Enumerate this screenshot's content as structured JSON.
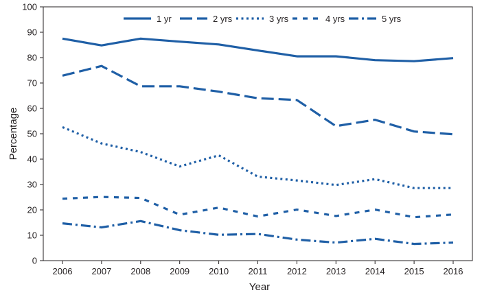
{
  "chart_data": {
    "type": "line",
    "title": "",
    "xlabel": "Year",
    "ylabel": "Percentage",
    "ylim": [
      0,
      100
    ],
    "yticks": [
      0,
      10,
      20,
      30,
      40,
      50,
      60,
      70,
      80,
      90,
      100
    ],
    "x": [
      "2006",
      "2007",
      "2008",
      "2009",
      "2010",
      "2011",
      "2012",
      "2013",
      "2014",
      "2015",
      "2016"
    ],
    "grid": false,
    "legend_position": "top",
    "line_color": "#1f5fa6",
    "series": [
      {
        "name": "1 yr",
        "style": "solid",
        "values": [
          87.5,
          84.8,
          87.5,
          86.3,
          85.2,
          82.8,
          80.5,
          80.5,
          79.0,
          78.6,
          79.8
        ]
      },
      {
        "name": "2 yrs",
        "style": "dashed",
        "values": [
          72.9,
          76.7,
          68.7,
          68.7,
          66.6,
          64.0,
          63.3,
          53.0,
          55.5,
          50.9,
          49.8
        ]
      },
      {
        "name": "3 yrs",
        "style": "dotted",
        "values": [
          52.6,
          46.2,
          42.8,
          37.1,
          41.5,
          33.1,
          31.6,
          29.8,
          32.1,
          28.6,
          28.6
        ]
      },
      {
        "name": "4 yrs",
        "style": "dash-short",
        "values": [
          24.4,
          25.1,
          24.7,
          18.1,
          20.9,
          17.4,
          20.1,
          17.6,
          20.1,
          17.1,
          18.2
        ]
      },
      {
        "name": "5 yrs",
        "style": "dash-dot",
        "values": [
          14.7,
          13.1,
          15.6,
          12.0,
          10.2,
          10.5,
          8.3,
          7.1,
          8.6,
          6.6,
          7.1
        ]
      }
    ]
  }
}
